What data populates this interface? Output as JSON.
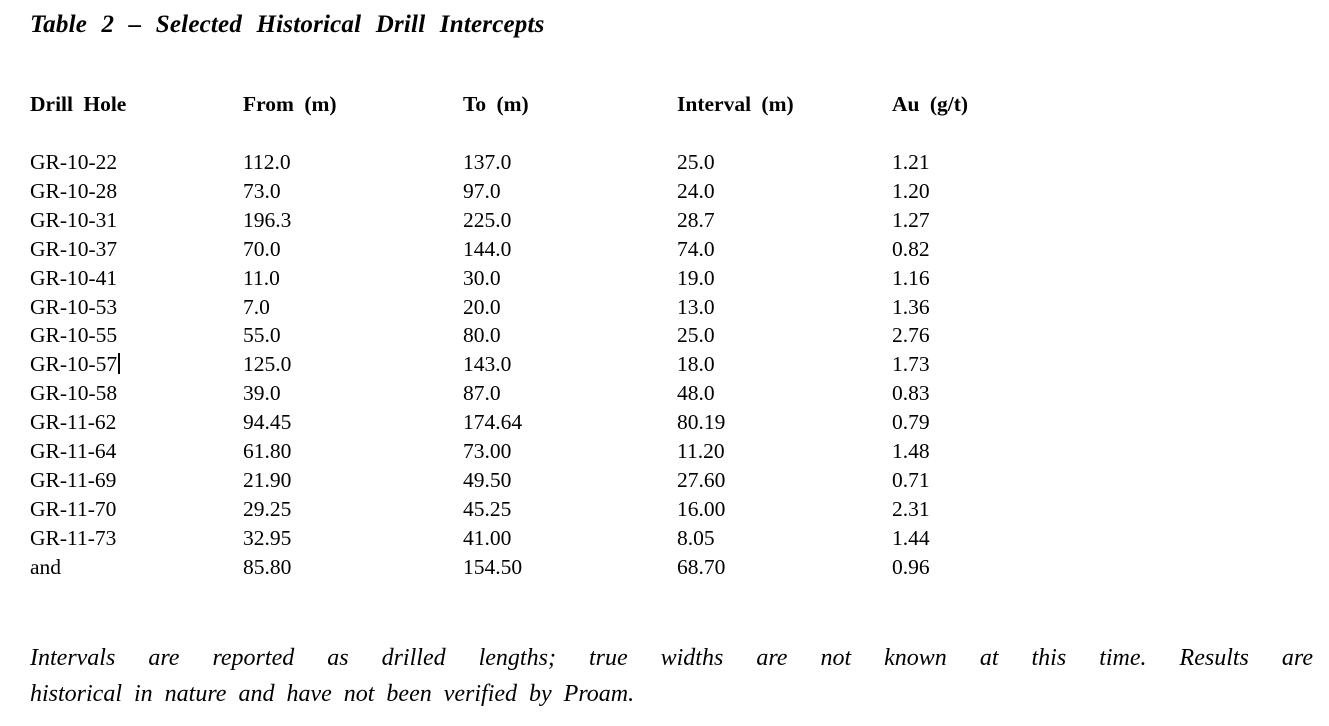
{
  "title": "Table 2 – Selected Historical Drill Intercepts",
  "table": {
    "columns": [
      "Drill Hole",
      "From (m)",
      "To (m)",
      "Interval (m)",
      "Au (g/t)"
    ],
    "rows": [
      [
        "GR-10-22",
        "112.0",
        "137.0",
        "25.0",
        "1.21"
      ],
      [
        "GR-10-28",
        "73.0",
        "97.0",
        "24.0",
        "1.20"
      ],
      [
        "GR-10-31",
        "196.3",
        "225.0",
        "28.7",
        "1.27"
      ],
      [
        "GR-10-37",
        "70.0",
        "144.0",
        "74.0",
        "0.82"
      ],
      [
        "GR-10-41",
        "11.0",
        "30.0",
        "19.0",
        "1.16"
      ],
      [
        "GR-10-53",
        "7.0",
        "20.0",
        "13.0",
        "1.36"
      ],
      [
        "GR-10-55",
        "55.0",
        "80.0",
        "25.0",
        "2.76"
      ],
      [
        "GR-10-57",
        "125.0",
        "143.0",
        "18.0",
        "1.73"
      ],
      [
        "GR-10-58",
        "39.0",
        "87.0",
        "48.0",
        "0.83"
      ],
      [
        "GR-11-62",
        "94.45",
        "174.64",
        "80.19",
        "0.79"
      ],
      [
        "GR-11-64",
        "61.80",
        "73.00",
        "11.20",
        "1.48"
      ],
      [
        "GR-11-69",
        "21.90",
        "49.50",
        "27.60",
        "0.71"
      ],
      [
        "GR-11-70",
        "29.25",
        "45.25",
        "16.00",
        "2.31"
      ],
      [
        "GR-11-73",
        "32.95",
        "41.00",
        "8.05",
        "1.44"
      ],
      [
        "and",
        "85.80",
        "154.50",
        "68.70",
        "0.96"
      ]
    ],
    "caret": {
      "row": 7,
      "col": 0
    }
  },
  "footnote": {
    "line1": "Intervals are reported as drilled lengths; true widths are not known at this time. Results are",
    "line2": "historical in nature and have not been verified by Proam."
  },
  "colors": {
    "text": "#000000",
    "background": "#ffffff"
  }
}
